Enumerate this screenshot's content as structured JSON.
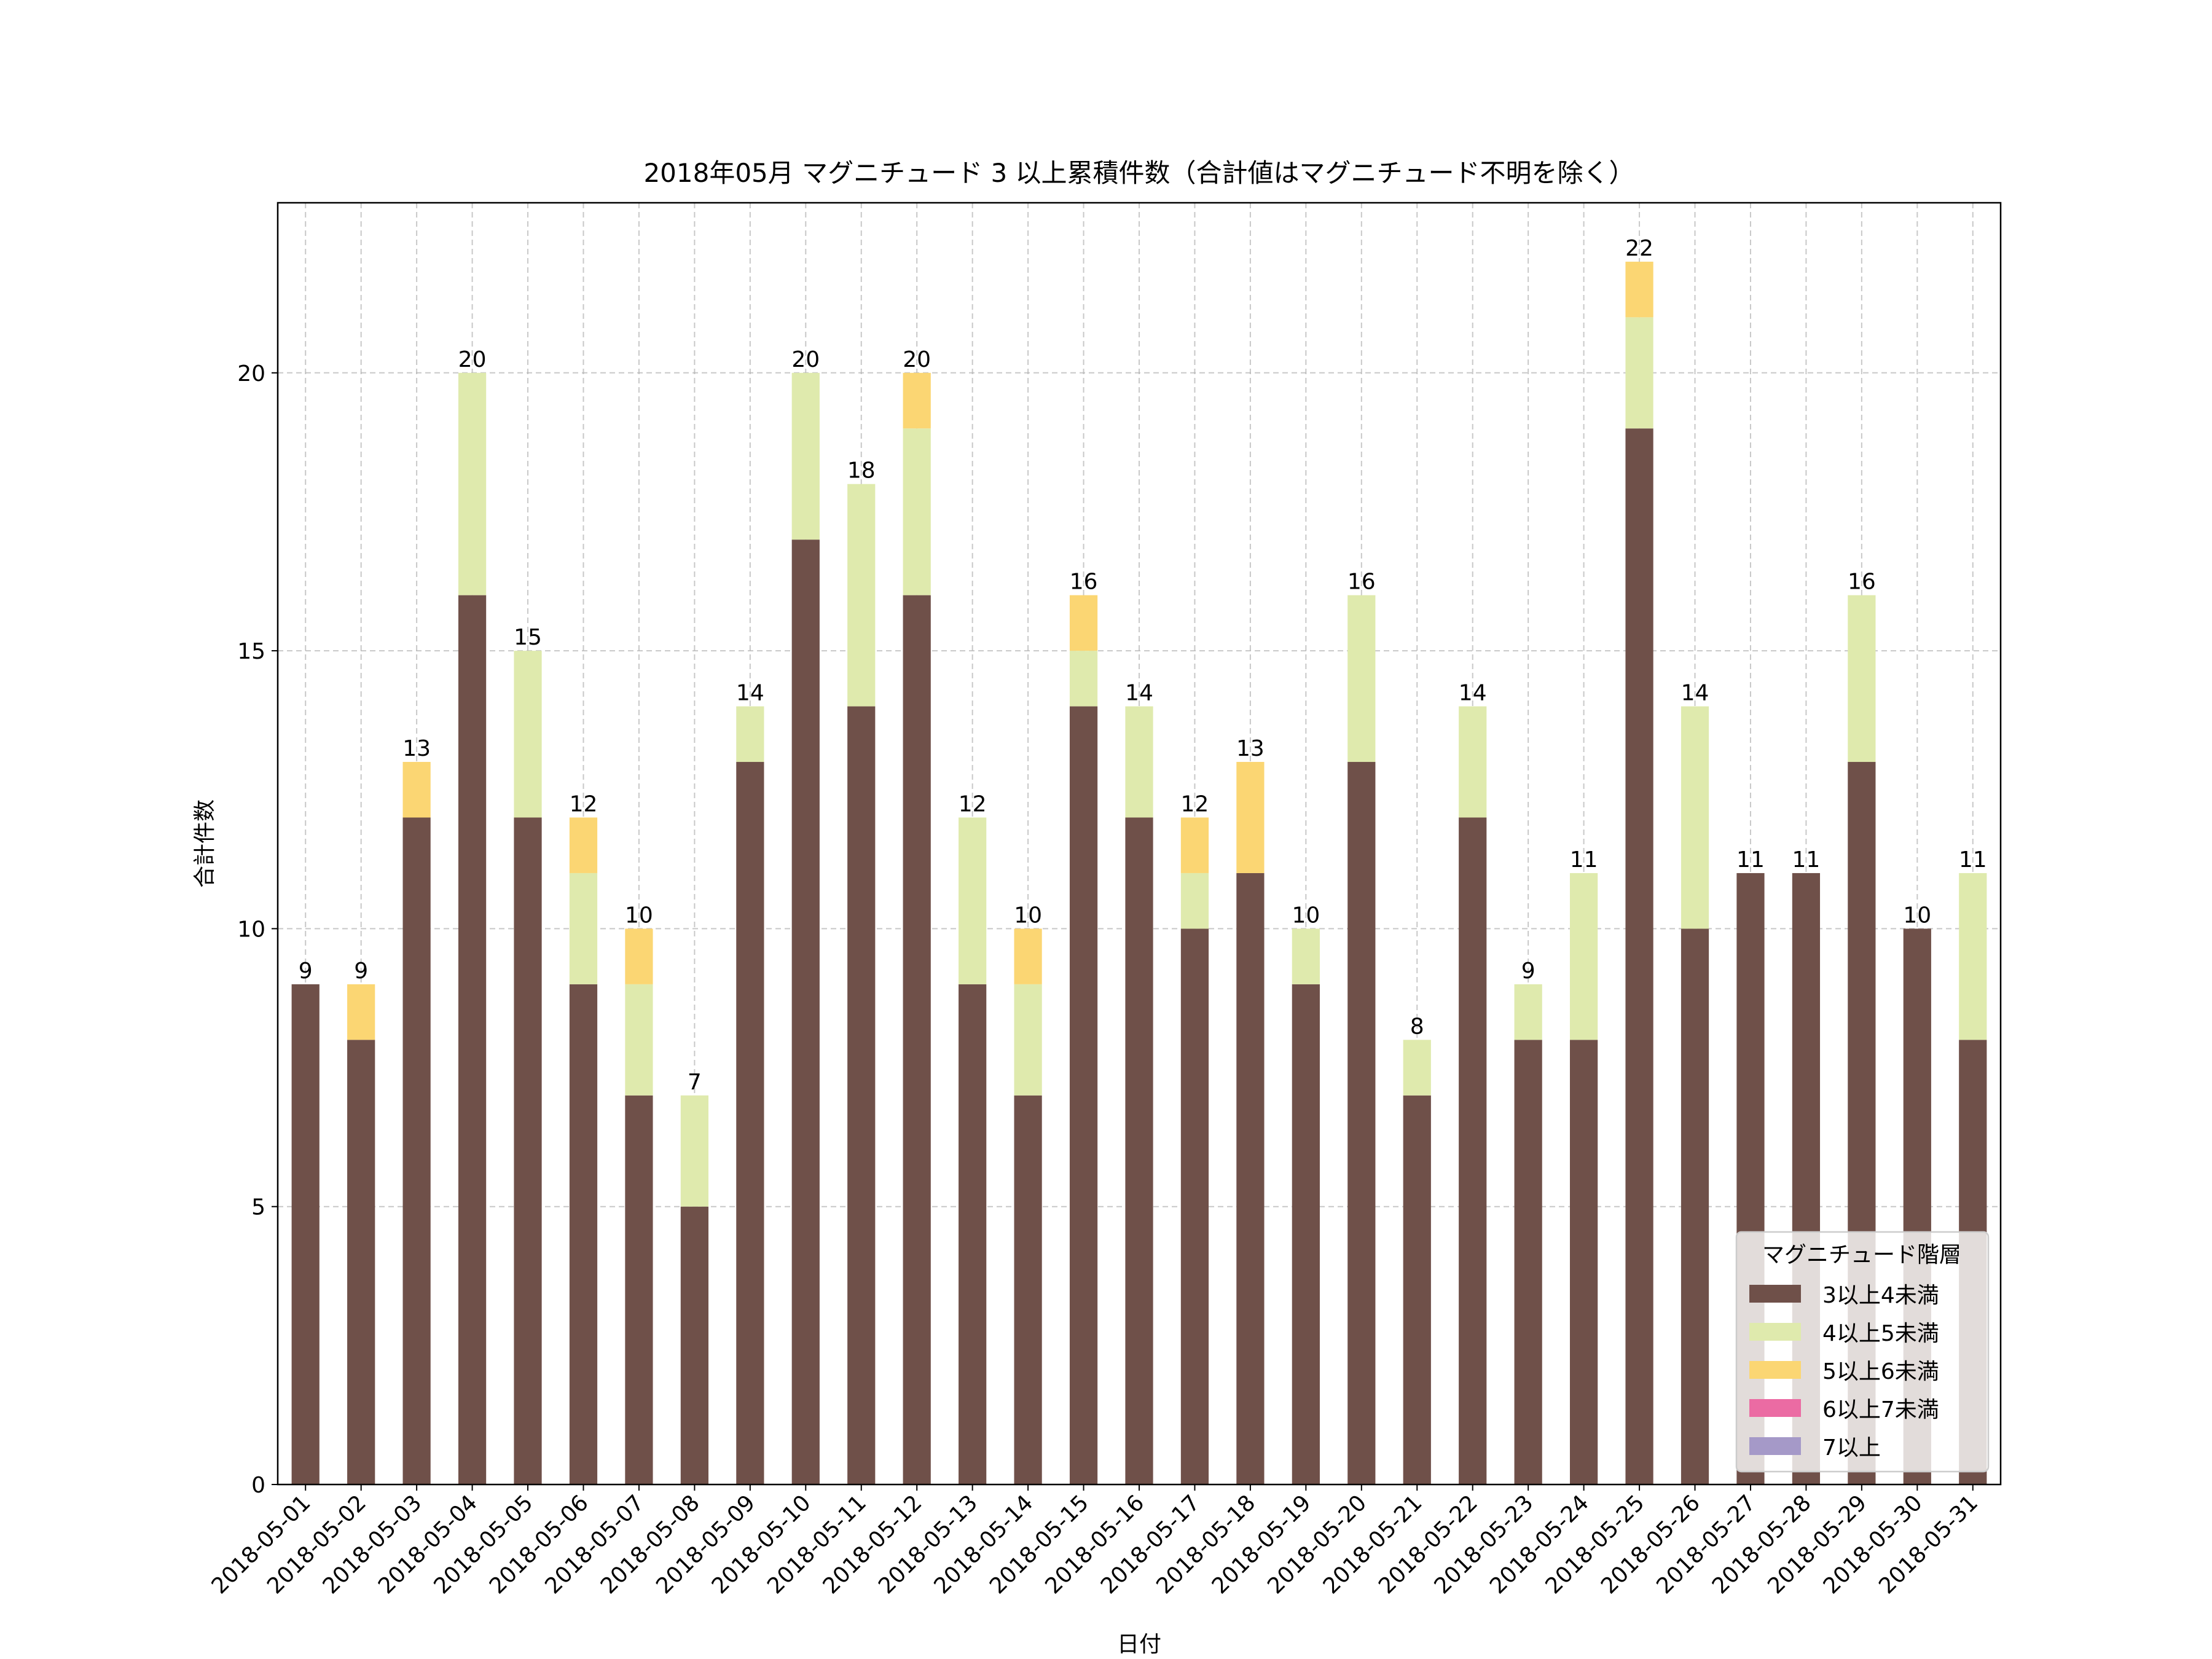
{
  "chart_data": {
    "type": "bar",
    "stacked": true,
    "title": "2018年05月 マグニチュード 3 以上累積件数（合計値はマグニチュード不明を除く）",
    "xlabel": "日付",
    "ylabel": "合計件数",
    "ylim": [
      0,
      23.06
    ],
    "yticks": [
      0,
      5,
      10,
      15,
      20
    ],
    "grid": true,
    "legend": {
      "title": "マグニチュード階層",
      "placement": "bottom-right"
    },
    "categories": [
      "2018-05-01",
      "2018-05-02",
      "2018-05-03",
      "2018-05-04",
      "2018-05-05",
      "2018-05-06",
      "2018-05-07",
      "2018-05-08",
      "2018-05-09",
      "2018-05-10",
      "2018-05-11",
      "2018-05-12",
      "2018-05-13",
      "2018-05-14",
      "2018-05-15",
      "2018-05-16",
      "2018-05-17",
      "2018-05-18",
      "2018-05-19",
      "2018-05-20",
      "2018-05-21",
      "2018-05-22",
      "2018-05-23",
      "2018-05-24",
      "2018-05-25",
      "2018-05-26",
      "2018-05-27",
      "2018-05-28",
      "2018-05-29",
      "2018-05-30",
      "2018-05-31"
    ],
    "series": [
      {
        "name": "3以上4未満",
        "color": "#6f5049",
        "values": [
          9,
          8,
          12,
          16,
          12,
          9,
          7,
          5,
          13,
          17,
          14,
          16,
          9,
          7,
          14,
          12,
          10,
          11,
          9,
          13,
          7,
          12,
          8,
          8,
          19,
          10,
          11,
          11,
          13,
          10,
          8
        ]
      },
      {
        "name": "4以上5未満",
        "color": "#dfeaad",
        "values": [
          0,
          0,
          0,
          4,
          3,
          2,
          2,
          2,
          1,
          3,
          4,
          3,
          3,
          2,
          1,
          2,
          1,
          0,
          1,
          3,
          1,
          2,
          1,
          3,
          2,
          4,
          0,
          0,
          3,
          0,
          3
        ]
      },
      {
        "name": "5以上6未満",
        "color": "#fbd673",
        "values": [
          0,
          1,
          1,
          0,
          0,
          1,
          1,
          0,
          0,
          0,
          0,
          1,
          0,
          1,
          1,
          0,
          1,
          2,
          0,
          0,
          0,
          0,
          0,
          0,
          1,
          0,
          0,
          0,
          0,
          0,
          0
        ]
      },
      {
        "name": "6以上7未満",
        "color": "#eb6ba3",
        "values": [
          0,
          0,
          0,
          0,
          0,
          0,
          0,
          0,
          0,
          0,
          0,
          0,
          0,
          0,
          0,
          0,
          0,
          0,
          0,
          0,
          0,
          0,
          0,
          0,
          0,
          0,
          0,
          0,
          0,
          0,
          0
        ]
      },
      {
        "name": "7以上",
        "color": "#a599c8",
        "values": [
          0,
          0,
          0,
          0,
          0,
          0,
          0,
          0,
          0,
          0,
          0,
          0,
          0,
          0,
          0,
          0,
          0,
          0,
          0,
          0,
          0,
          0,
          0,
          0,
          0,
          0,
          0,
          0,
          0,
          0,
          0
        ]
      }
    ],
    "totals": [
      9,
      9,
      13,
      20,
      15,
      12,
      10,
      7,
      14,
      20,
      18,
      20,
      12,
      10,
      16,
      14,
      12,
      13,
      10,
      16,
      8,
      14,
      9,
      11,
      22,
      14,
      11,
      11,
      16,
      10,
      11
    ]
  }
}
